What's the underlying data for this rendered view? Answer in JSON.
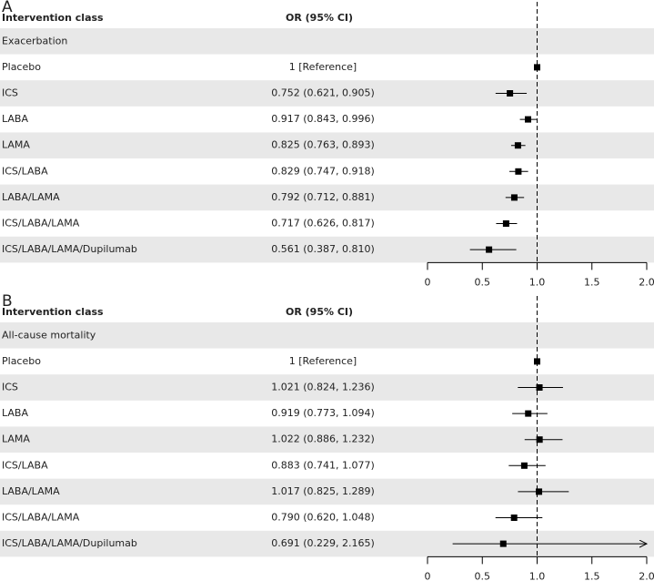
{
  "chart_data": [
    {
      "type": "forest",
      "panel": "A",
      "header_label": "Intervention class",
      "header_value": "OR (95% CI)",
      "section": "Exacerbation",
      "categories": [
        "Placebo",
        "ICS",
        "LABA",
        "LAMA",
        "ICS/LABA",
        "LABA/LAMA",
        "ICS/LABA/LAMA",
        "ICS/LABA/LAMA/Dupilumab"
      ],
      "values": [
        1,
        0.752,
        0.917,
        0.825,
        0.829,
        0.792,
        0.717,
        0.561
      ],
      "ci_lower": [
        null,
        0.621,
        0.843,
        0.763,
        0.747,
        0.712,
        0.626,
        0.387
      ],
      "ci_upper": [
        null,
        0.905,
        0.996,
        0.893,
        0.918,
        0.881,
        0.817,
        0.81
      ],
      "value_labels": [
        "1 [Reference]",
        "0.752 (0.621, 0.905)",
        "0.917 (0.843, 0.996)",
        "0.825 (0.763, 0.893)",
        "0.829 (0.747, 0.918)",
        "0.792 (0.712, 0.881)",
        "0.717 (0.626, 0.817)",
        "0.561 (0.387, 0.810)"
      ],
      "xlim": [
        0,
        2
      ],
      "xticks": [
        0,
        0.5,
        {
          "value": 1,
          "label": "1.0"
        },
        1.5,
        {
          "value": 2,
          "label": "2.0"
        }
      ],
      "reference_line": 1,
      "color": "#000000",
      "stripe_color": "#e8e8e8"
    },
    {
      "type": "forest",
      "panel": "B",
      "header_label": "Intervention class",
      "header_value": "OR (95% CI)",
      "section": "All-cause mortality",
      "categories": [
        "Placebo",
        "ICS",
        "LABA",
        "LAMA",
        "ICS/LABA",
        "LABA/LAMA",
        "ICS/LABA/LAMA",
        "ICS/LABA/LAMA/Dupilumab"
      ],
      "values": [
        1,
        1.021,
        0.919,
        1.022,
        0.883,
        1.017,
        0.79,
        0.691
      ],
      "ci_lower": [
        null,
        0.824,
        0.773,
        0.886,
        0.741,
        0.825,
        0.62,
        0.229
      ],
      "ci_upper": [
        null,
        1.236,
        1.094,
        1.232,
        1.077,
        1.289,
        1.048,
        2.165
      ],
      "value_labels": [
        "1 [Reference]",
        "1.021 (0.824, 1.236)",
        "0.919 (0.773, 1.094)",
        "1.022 (0.886, 1.232)",
        "0.883 (0.741, 1.077)",
        "1.017 (0.825, 1.289)",
        "0.790 (0.620, 1.048)",
        "0.691 (0.229, 2.165)"
      ],
      "xlim": [
        0,
        2
      ],
      "xticks": [
        0,
        0.5,
        {
          "value": 1,
          "label": "1.0"
        },
        1.5,
        {
          "value": 2,
          "label": "2.0"
        }
      ],
      "reference_line": 1,
      "color": "#000000",
      "stripe_color": "#e8e8e8"
    }
  ]
}
